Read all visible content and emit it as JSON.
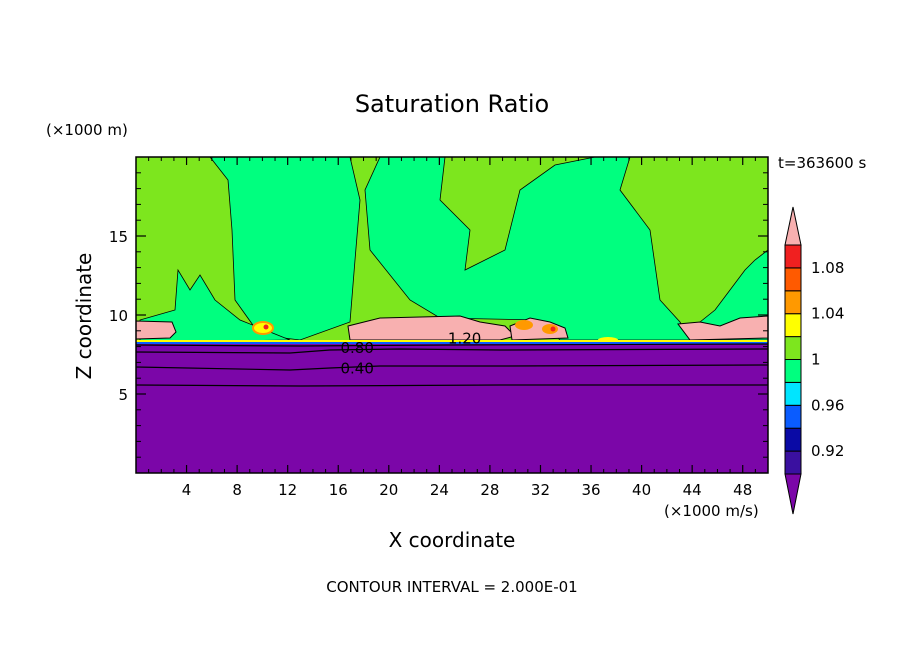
{
  "chart_data": {
    "type": "heatmap",
    "title": "Saturation Ratio",
    "xlabel": "X coordinate",
    "ylabel": "Z coordinate",
    "x_units": "(×1000 m/s)",
    "y_units": "(×1000 m)",
    "time_label": "t=363600 s",
    "footer": "CONTOUR INTERVAL = 2.000E-01",
    "xlim": [
      0,
      50
    ],
    "ylim": [
      0,
      20
    ],
    "x_ticks": [
      "4",
      "8",
      "12",
      "16",
      "20",
      "24",
      "28",
      "32",
      "36",
      "40",
      "44",
      "48"
    ],
    "x_tick_values": [
      4,
      8,
      12,
      16,
      20,
      24,
      28,
      32,
      36,
      40,
      44,
      48
    ],
    "y_ticks": [
      "5",
      "10",
      "15"
    ],
    "y_tick_values": [
      5,
      10,
      15
    ],
    "contour_labels": [
      {
        "text": "1.20",
        "x": 26,
        "z": 8.5
      },
      {
        "text": "0.80",
        "x": 17.5,
        "z": 7.9
      },
      {
        "text": "0.40",
        "x": 17.5,
        "z": 6.6
      }
    ],
    "colorbar": {
      "colors": [
        "#7b06a8",
        "#3a10a0",
        "#0a0aa5",
        "#0a5cff",
        "#00e5ff",
        "#00ff7f",
        "#7de61e",
        "#ffff00",
        "#ff9900",
        "#ff5a00",
        "#f02020",
        "#f8b0b0"
      ],
      "tick_labels": [
        "0.92",
        "0.96",
        "1",
        "1.04",
        "1.08"
      ],
      "tick_after_index": [
        1,
        3,
        5,
        7,
        9
      ]
    },
    "regions": [
      {
        "name": "below 0.92 (purple layer)",
        "value": 0.9,
        "z": [
          0,
          8.1
        ],
        "color": "#7b06a8"
      },
      {
        "name": "supersaturated cloud layer",
        "value": 1.12,
        "z": [
          8.3,
          9.8
        ],
        "color": "#f8b0b0"
      },
      {
        "name": "upper air",
        "values": [
          0.98,
          1.01
        ],
        "z": [
          9.8,
          20
        ],
        "colors": [
          "#00ff7f",
          "#7de61e"
        ]
      }
    ]
  }
}
